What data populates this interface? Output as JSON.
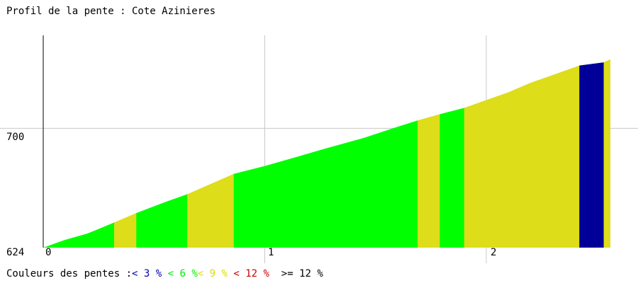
{
  "page": {
    "title": "Profil de la pente : Cote Azinieres"
  },
  "legend": {
    "label": "Couleurs des pentes :",
    "items": [
      {
        "text": "< 3 %",
        "color": "#0000aa"
      },
      {
        "text": "< 6 %",
        "color": "#00ee00"
      },
      {
        "text": "< 9 %",
        "color": "#dddd00"
      },
      {
        "text": "< 12 %",
        "color": "#cc0000"
      },
      {
        "text": ">= 12 %",
        "color": "#000000"
      }
    ]
  },
  "chart_data": {
    "type": "area",
    "title": "Profil de la pente : Cote Azinieres",
    "xlabel": "",
    "ylabel": "",
    "x_tick_labels": [
      "0",
      "1",
      "2"
    ],
    "x_ticks": [
      0,
      1,
      2
    ],
    "y_tick_labels": [
      "624",
      "700"
    ],
    "y_ticks": [
      624,
      700
    ],
    "xlim": [
      0,
      2.56
    ],
    "ylim": [
      624,
      761
    ],
    "grid": true,
    "profile": {
      "x": [
        0,
        0.1,
        0.2,
        0.32,
        0.42,
        0.55,
        0.65,
        0.86,
        1.0,
        1.15,
        1.27,
        1.45,
        1.6,
        1.69,
        1.79,
        1.9,
        2.0,
        2.1,
        2.2,
        2.32,
        2.42,
        2.53,
        2.56
      ],
      "elevation": [
        624,
        629,
        633,
        640,
        646,
        653,
        658,
        671,
        676,
        682,
        687,
        694,
        701,
        705,
        709,
        713,
        718,
        723,
        729,
        735,
        740,
        742,
        744
      ]
    },
    "segments": [
      {
        "x0": 0.0,
        "x1": 0.32,
        "color": "#00ff00"
      },
      {
        "x0": 0.32,
        "x1": 0.42,
        "color": "#dddd1a"
      },
      {
        "x0": 0.42,
        "x1": 0.65,
        "color": "#00ff00"
      },
      {
        "x0": 0.65,
        "x1": 0.86,
        "color": "#dddd1a"
      },
      {
        "x0": 0.86,
        "x1": 1.69,
        "color": "#00ff00"
      },
      {
        "x0": 1.69,
        "x1": 1.79,
        "color": "#dddd1a"
      },
      {
        "x0": 1.79,
        "x1": 1.9,
        "color": "#00ff00"
      },
      {
        "x0": 1.9,
        "x1": 2.42,
        "color": "#dddd1a"
      },
      {
        "x0": 2.42,
        "x1": 2.53,
        "color": "#000099"
      },
      {
        "x0": 2.53,
        "x1": 2.56,
        "color": "#dddd1a"
      }
    ]
  }
}
